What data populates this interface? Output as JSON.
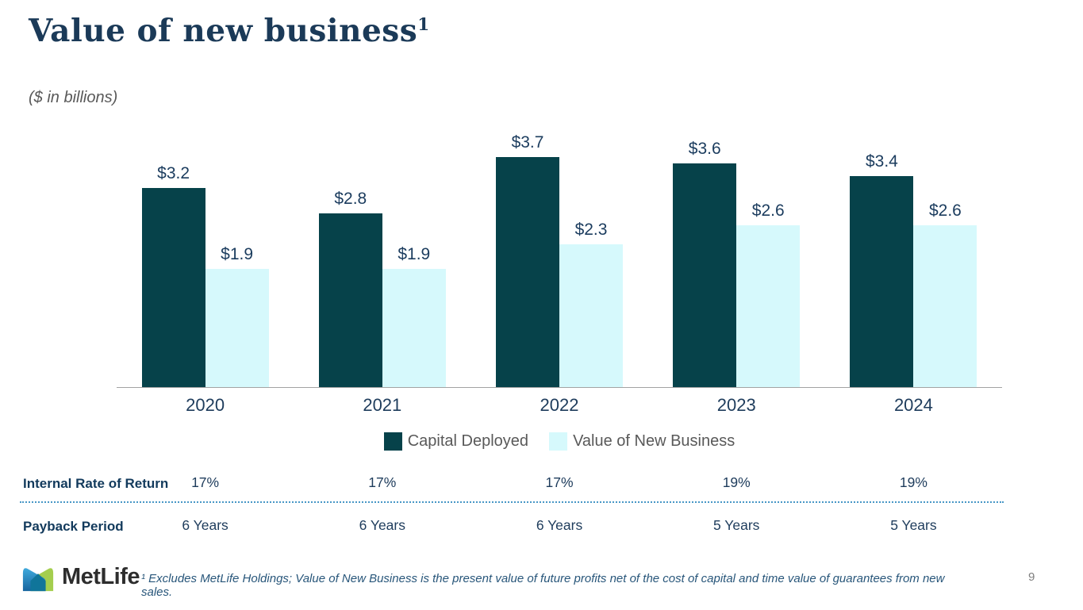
{
  "header": {
    "title": "Value of new business",
    "title_superscript": "1",
    "subtitle": "($ in billions)"
  },
  "chart_data": {
    "type": "bar",
    "categories": [
      "2020",
      "2021",
      "2022",
      "2023",
      "2024"
    ],
    "series": [
      {
        "name": "Capital Deployed",
        "color": "#06424A",
        "values": [
          3.2,
          2.8,
          3.7,
          3.6,
          3.4
        ],
        "labels": [
          "$3.2",
          "$2.8",
          "$3.7",
          "$3.6",
          "$3.4"
        ]
      },
      {
        "name": "Value of New Business",
        "color": "#D6F9FC",
        "values": [
          1.9,
          1.9,
          2.3,
          2.6,
          2.6
        ],
        "labels": [
          "$1.9",
          "$1.9",
          "$2.3",
          "$2.6",
          "$2.6"
        ]
      }
    ],
    "title": "Value of new business",
    "xlabel": "",
    "ylabel": "",
    "units": "$ in billions",
    "ylim": [
      0,
      3.7
    ],
    "grid": false,
    "y_axis_hidden": true,
    "legend_position": "bottom"
  },
  "legend": {
    "items": [
      {
        "label": "Capital Deployed",
        "color": "#06424A"
      },
      {
        "label": "Value of New Business",
        "color": "#D6F9FC"
      }
    ]
  },
  "table": {
    "rows": [
      {
        "label": "Internal Rate of Return",
        "values": [
          "17%",
          "17%",
          "17%",
          "19%",
          "19%"
        ]
      },
      {
        "label": "Payback Period",
        "values": [
          "6 Years",
          "6 Years",
          "6 Years",
          "5 Years",
          "5 Years"
        ]
      }
    ]
  },
  "footer": {
    "logo_text": "MetLife",
    "logo_icon": "metlife-m-logo",
    "footnote": "¹ Excludes MetLife Holdings; Value of New Business is the present value of future profits net of the cost of capital and time value of guarantees from new sales.",
    "page_number": "9"
  },
  "colors": {
    "title_navy": "#1b3a58",
    "label_navy": "#1b3c5e",
    "gray_text": "#595959",
    "axis_line": "#a3a3a3",
    "divider_dotted": "#4897c6",
    "logo_blue_light": "#3FA9DC",
    "logo_blue_dark": "#16649E",
    "logo_green": "#A4CE4E",
    "logo_overlap_teal": "#10759A"
  }
}
